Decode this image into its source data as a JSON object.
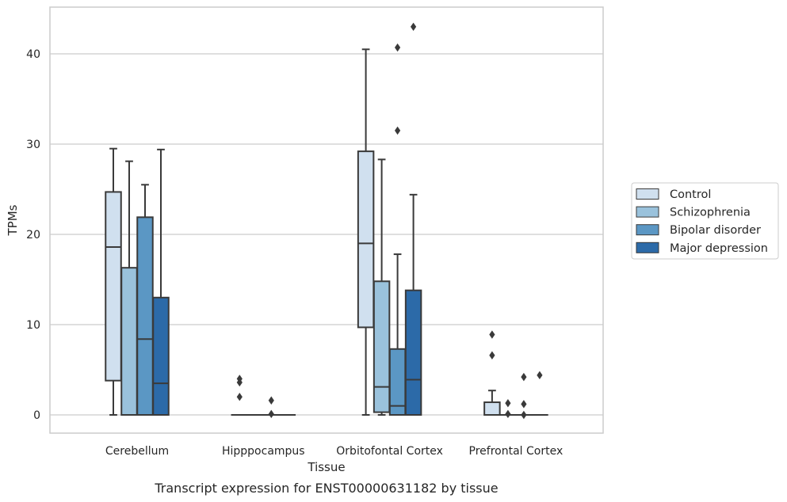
{
  "caption": "Transcript expression for ENST00000631182 by tissue",
  "chart_data": {
    "type": "box",
    "xlabel": "Tissue",
    "ylabel": "TPMs",
    "ylim": [
      -2,
      45.5
    ],
    "yticks": [
      0,
      10,
      20,
      30,
      40
    ],
    "grid": "horizontal",
    "legend_position": "right",
    "categories": [
      "Cerebellum",
      "Hipppocampus",
      "Orbitofontal Cortex",
      "Prefrontal Cortex"
    ],
    "series": [
      {
        "name": "Control",
        "color": "#d0e0ef",
        "boxes": [
          {
            "whisker_low": 0,
            "q1": 3.8,
            "median": 18.6,
            "q3": 24.7,
            "whisker_high": 29.5,
            "outliers": []
          },
          {
            "whisker_low": 0,
            "q1": 0,
            "median": 0,
            "q3": 0,
            "whisker_high": 0,
            "outliers": [
              2.0,
              3.6,
              4.0
            ]
          },
          {
            "whisker_low": 0,
            "q1": 9.7,
            "median": 19.0,
            "q3": 29.2,
            "whisker_high": 40.5,
            "outliers": []
          },
          {
            "whisker_low": 0,
            "q1": 0,
            "median": 0,
            "q3": 1.4,
            "whisker_high": 2.7,
            "outliers": [
              6.6,
              8.9
            ]
          }
        ]
      },
      {
        "name": "Schizophrenia",
        "color": "#9ac2dc",
        "boxes": [
          {
            "whisker_low": 0,
            "q1": 0,
            "median": 0,
            "q3": 16.3,
            "whisker_high": 28.1,
            "outliers": []
          },
          {
            "whisker_low": 0,
            "q1": 0,
            "median": 0,
            "q3": 0,
            "whisker_high": 0,
            "outliers": []
          },
          {
            "whisker_low": 0,
            "q1": 0.3,
            "median": 3.1,
            "q3": 14.8,
            "whisker_high": 28.3,
            "outliers": []
          },
          {
            "whisker_low": 0,
            "q1": 0,
            "median": 0,
            "q3": 0,
            "whisker_high": 0,
            "outliers": [
              0.1,
              1.3
            ]
          }
        ]
      },
      {
        "name": "Bipolar disorder",
        "color": "#5b97c4",
        "boxes": [
          {
            "whisker_low": 0,
            "q1": 0,
            "median": 8.4,
            "q3": 21.9,
            "whisker_high": 25.5,
            "outliers": []
          },
          {
            "whisker_low": 0,
            "q1": 0,
            "median": 0,
            "q3": 0,
            "whisker_high": 0,
            "outliers": [
              0.1,
              1.6
            ]
          },
          {
            "whisker_low": 0,
            "q1": 0,
            "median": 1.0,
            "q3": 7.3,
            "whisker_high": 17.8,
            "outliers": [
              31.5,
              40.7
            ]
          },
          {
            "whisker_low": 0,
            "q1": 0,
            "median": 0,
            "q3": 0,
            "whisker_high": 0,
            "outliers": [
              0.0,
              1.2,
              4.2
            ]
          }
        ]
      },
      {
        "name": "Major depression",
        "color": "#2c6aa8",
        "boxes": [
          {
            "whisker_low": 0,
            "q1": 0,
            "median": 3.5,
            "q3": 13.0,
            "whisker_high": 29.4,
            "outliers": []
          },
          {
            "whisker_low": 0,
            "q1": 0,
            "median": 0,
            "q3": 0,
            "whisker_high": 0,
            "outliers": []
          },
          {
            "whisker_low": 0,
            "q1": 0,
            "median": 3.9,
            "q3": 13.8,
            "whisker_high": 24.4,
            "outliers": [
              43.0
            ]
          },
          {
            "whisker_low": 0,
            "q1": 0,
            "median": 0,
            "q3": 0,
            "whisker_high": 0,
            "outliers": [
              4.4
            ]
          }
        ]
      }
    ]
  }
}
